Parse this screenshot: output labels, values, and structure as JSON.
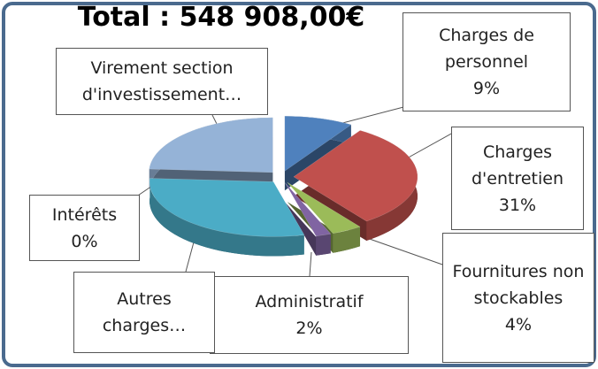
{
  "chart_data": {
    "type": "pie3d",
    "title": "Total : 548 908,00€",
    "categories": [
      "Charges de personnel",
      "Charges d'entretien",
      "Fournitures non stockables",
      "Administratif",
      "Autres charges…",
      "Intérêts",
      "Virement section d'investissement…"
    ],
    "values": [
      9,
      31,
      4,
      2,
      30,
      0,
      24
    ],
    "value_labels": [
      "9%",
      "31%",
      "4%",
      "2%",
      null,
      "0%",
      null
    ],
    "colors": [
      "#4f81bd",
      "#c0504d",
      "#9bbb59",
      "#8064a2",
      "#4bacc6",
      "#a0522d",
      "#95b3d7"
    ]
  }
}
